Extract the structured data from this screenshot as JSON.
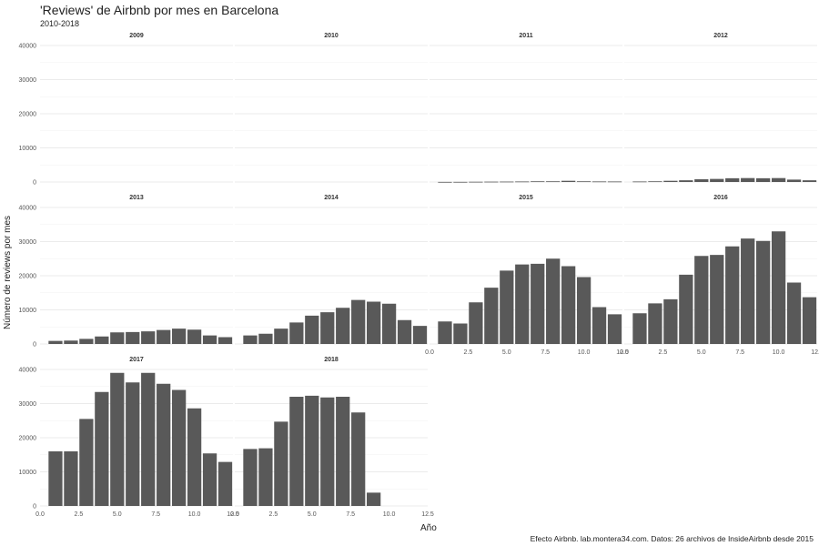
{
  "title": "'Reviews' de Airbnb por mes en Barcelona",
  "subtitle": "2010-2018",
  "caption": "Efecto Airbnb. lab.montera34.com. Datos: 26 archivos de InsideAirbnb desde 2015",
  "colors": {
    "bar": "#595959",
    "grid": "#e4e4e4",
    "text": "#222222"
  },
  "chart_data": {
    "type": "bar",
    "xlabel": "Año",
    "ylabel": "Número de reviews por mes",
    "xlim": [
      0,
      12.5
    ],
    "ylim": [
      0,
      40000
    ],
    "x_ticks": [
      0,
      2.5,
      5,
      7.5,
      10,
      12.5
    ],
    "x_tick_labels": [
      "0.0",
      "2.5",
      "5.0",
      "7.5",
      "10.0",
      "12.5"
    ],
    "y_ticks": [
      0,
      10000,
      20000,
      30000,
      40000
    ],
    "y_tick_labels": [
      "0",
      "10000",
      "20000",
      "30000",
      "40000"
    ],
    "months": [
      1,
      2,
      3,
      4,
      5,
      6,
      7,
      8,
      9,
      10,
      11,
      12
    ],
    "panels": [
      {
        "year": "2009",
        "values": []
      },
      {
        "year": "2010",
        "values": []
      },
      {
        "year": "2011",
        "values": [
          30,
          40,
          70,
          100,
          120,
          150,
          200,
          200,
          350,
          200,
          160,
          150
        ]
      },
      {
        "year": "2012",
        "values": [
          150,
          200,
          350,
          500,
          800,
          900,
          1100,
          1150,
          1100,
          1150,
          700,
          500
        ]
      },
      {
        "year": "2013",
        "values": [
          900,
          1000,
          1500,
          2200,
          3400,
          3500,
          3700,
          4100,
          4500,
          4200,
          2500,
          2000
        ]
      },
      {
        "year": "2014",
        "values": [
          2500,
          3000,
          4500,
          6300,
          8300,
          9300,
          10600,
          12900,
          12400,
          11800,
          7000,
          5300
        ]
      },
      {
        "year": "2015",
        "values": [
          6600,
          6000,
          12200,
          16500,
          21500,
          23300,
          23500,
          25000,
          22800,
          19600,
          10800,
          8700
        ]
      },
      {
        "year": "2016",
        "values": [
          9000,
          11900,
          13100,
          20300,
          25800,
          26100,
          28600,
          30900,
          30200,
          33000,
          18000,
          13700
        ]
      },
      {
        "year": "2017",
        "values": [
          16000,
          16000,
          25500,
          33400,
          39000,
          36200,
          39000,
          35800,
          34000,
          28600,
          15400,
          12900
        ]
      },
      {
        "year": "2018",
        "values": [
          16700,
          16900,
          24700,
          32000,
          32300,
          31800,
          32000,
          27400,
          3900
        ]
      }
    ]
  }
}
